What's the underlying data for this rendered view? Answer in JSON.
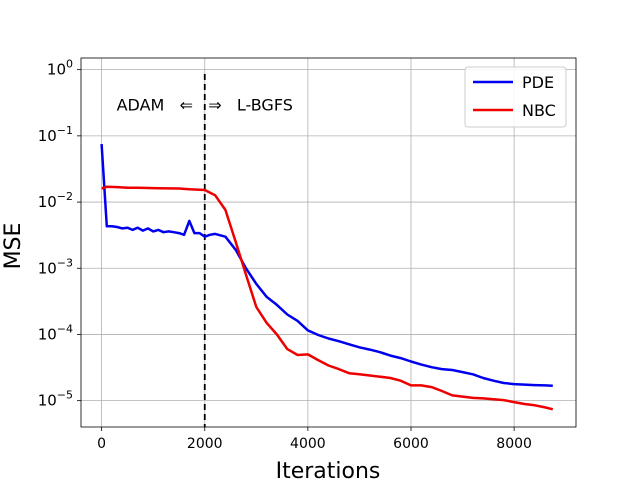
{
  "chart_data": {
    "type": "line",
    "xlabel": "Iterations",
    "ylabel": "MSE",
    "xlim": [
      -400,
      9200
    ],
    "ylim": [
      4e-06,
      1.5
    ],
    "yscale": "log",
    "grid": true,
    "legend_position": "top-right",
    "x_ticks": [
      0,
      2000,
      4000,
      6000,
      8000
    ],
    "x_tick_labels": [
      "0",
      "2000",
      "4000",
      "6000",
      "8000"
    ],
    "y_ticks": [
      1e-05,
      0.0001,
      0.001,
      0.01,
      0.1,
      1
    ],
    "y_tick_labels": [
      {
        "base": "10",
        "exp": "−5"
      },
      {
        "base": "10",
        "exp": "−4"
      },
      {
        "base": "10",
        "exp": "−3"
      },
      {
        "base": "10",
        "exp": "−2"
      },
      {
        "base": "10",
        "exp": "−1"
      },
      {
        "base": "10",
        "exp": "0"
      }
    ],
    "vline": {
      "x": 2000,
      "style": "dashed",
      "color": "#000000"
    },
    "annotation": {
      "text": "ADAM   ⇐   ⇒   L-BGFS",
      "x": 2000,
      "y": 0.3
    },
    "series": [
      {
        "name": "PDE",
        "color": "#0000ee",
        "x": [
          0,
          100,
          200,
          300,
          400,
          500,
          600,
          700,
          800,
          900,
          1000,
          1100,
          1200,
          1300,
          1400,
          1500,
          1600,
          1700,
          1800,
          1900,
          2000,
          2100,
          2200,
          2400,
          2600,
          2800,
          3000,
          3200,
          3400,
          3600,
          3800,
          4000,
          4200,
          4400,
          4600,
          4800,
          5000,
          5200,
          5400,
          5600,
          5800,
          6000,
          6200,
          6400,
          6600,
          6800,
          7000,
          7200,
          7400,
          7600,
          7800,
          8000,
          8200,
          8400,
          8600,
          8750
        ],
        "y": [
          0.075,
          0.0043,
          0.0043,
          0.0042,
          0.004,
          0.0041,
          0.0038,
          0.0041,
          0.0037,
          0.004,
          0.0036,
          0.0038,
          0.0035,
          0.0036,
          0.0035,
          0.0034,
          0.0032,
          0.0052,
          0.0034,
          0.0034,
          0.003,
          0.0032,
          0.0033,
          0.003,
          0.0019,
          0.001,
          0.00058,
          0.00037,
          0.00028,
          0.0002,
          0.00016,
          0.000115,
          9.8e-05,
          8.7e-05,
          7.9e-05,
          7.1e-05,
          6.4e-05,
          5.9e-05,
          5.4e-05,
          4.8e-05,
          4.4e-05,
          3.9e-05,
          3.5e-05,
          3.2e-05,
          3e-05,
          2.9e-05,
          2.7e-05,
          2.5e-05,
          2.2e-05,
          2e-05,
          1.85e-05,
          1.78e-05,
          1.75e-05,
          1.72e-05,
          1.7e-05,
          1.68e-05
        ]
      },
      {
        "name": "NBC",
        "color": "#ee0000",
        "x": [
          0,
          100,
          300,
          500,
          700,
          900,
          1100,
          1300,
          1500,
          1700,
          1900,
          2000,
          2200,
          2400,
          2600,
          2800,
          3000,
          3200,
          3400,
          3600,
          3800,
          4000,
          4200,
          4400,
          4600,
          4800,
          5000,
          5200,
          5400,
          5600,
          5800,
          6000,
          6200,
          6400,
          6600,
          6800,
          7000,
          7200,
          7400,
          7600,
          7800,
          8000,
          8200,
          8400,
          8600,
          8750
        ],
        "y": [
          0.016,
          0.017,
          0.0168,
          0.0165,
          0.0164,
          0.0163,
          0.0162,
          0.0161,
          0.016,
          0.0156,
          0.0153,
          0.0152,
          0.0127,
          0.0076,
          0.0025,
          0.0008,
          0.00026,
          0.00015,
          0.0001,
          6e-05,
          4.9e-05,
          5e-05,
          4.1e-05,
          3.4e-05,
          3e-05,
          2.6e-05,
          2.5e-05,
          2.4e-05,
          2.3e-05,
          2.2e-05,
          2e-05,
          1.7e-05,
          1.7e-05,
          1.6e-05,
          1.4e-05,
          1.2e-05,
          1.15e-05,
          1.1e-05,
          1.08e-05,
          1.05e-05,
          1.02e-05,
          9.5e-06,
          8.9e-06,
          8.5e-06,
          7.9e-06,
          7.4e-06
        ]
      }
    ]
  }
}
